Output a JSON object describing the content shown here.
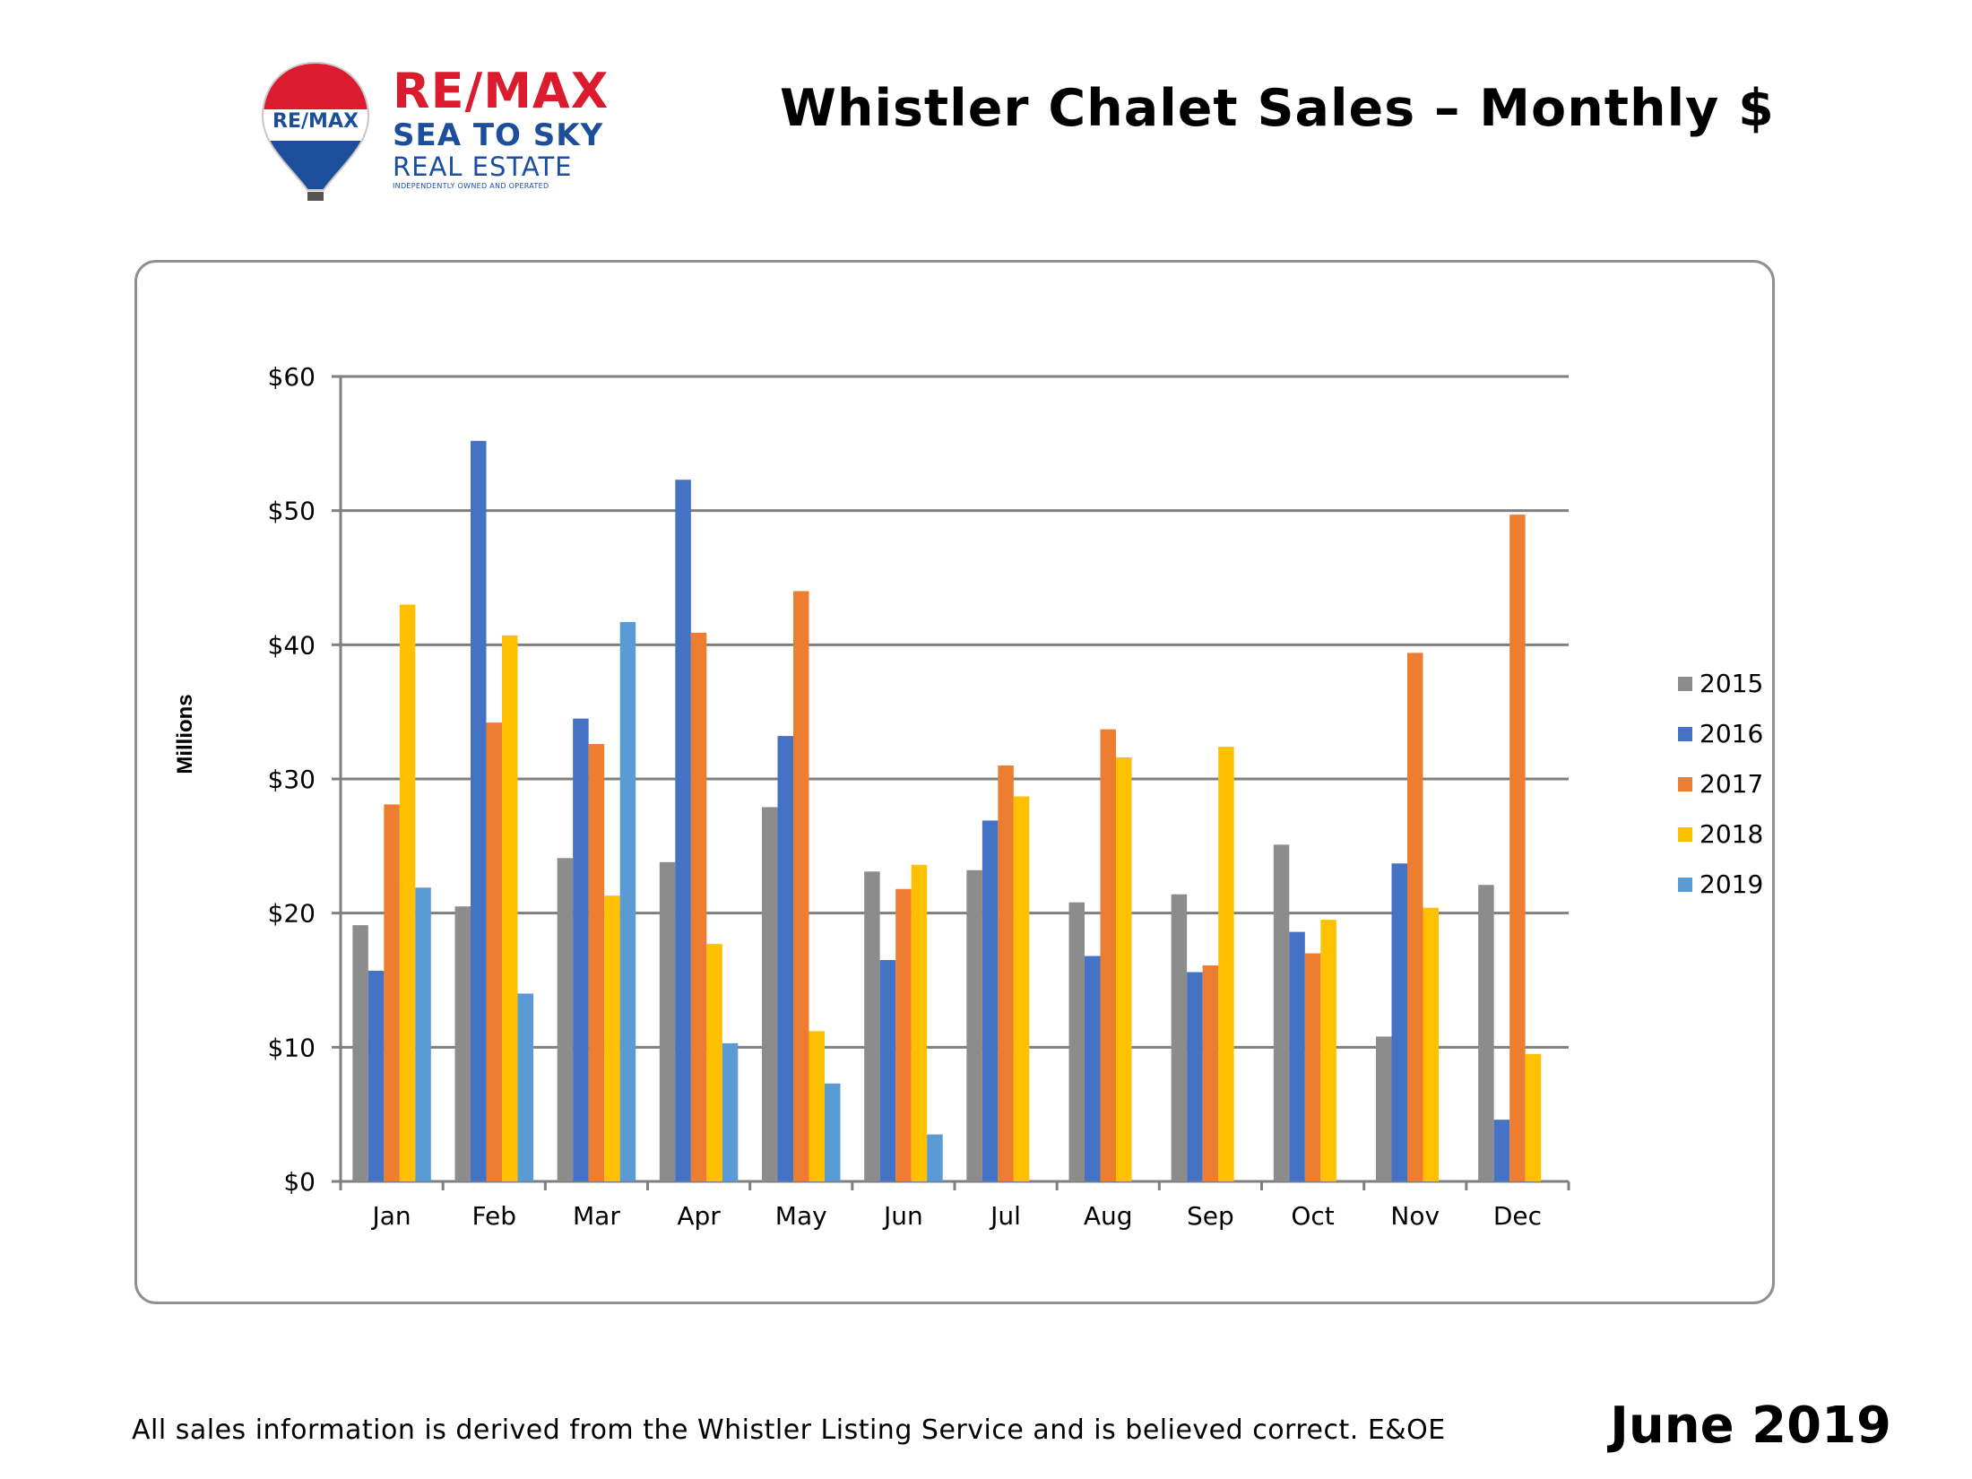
{
  "header": {
    "logo": {
      "balloon_text": "RE/MAX",
      "brand_name": "RE/MAX",
      "office_line1": "SEA TO SKY",
      "office_line2": "REAL ESTATE",
      "tagline": "INDEPENDENTLY OWNED AND OPERATED"
    },
    "title": "Whistler Chalet Sales – Monthly $"
  },
  "colors": {
    "grid": "#7f7f7f",
    "frame": "#8f8f8f",
    "brand_red": "#dc1c2e",
    "brand_blue": "#1c4e9c"
  },
  "chart_data": {
    "type": "bar",
    "ylabel": "Millions",
    "ylim": [
      0,
      60
    ],
    "y_ticks": [
      0,
      10,
      20,
      30,
      40,
      50,
      60
    ],
    "y_tick_labels": [
      "$0",
      "$10",
      "$20",
      "$30",
      "$40",
      "$50",
      "$60"
    ],
    "grid": true,
    "legend_position": "right",
    "categories": [
      "Jan",
      "Feb",
      "Mar",
      "Apr",
      "May",
      "Jun",
      "Jul",
      "Aug",
      "Sep",
      "Oct",
      "Nov",
      "Dec"
    ],
    "series": [
      {
        "name": "2015",
        "color": "#8c8c8c",
        "values": [
          19.1,
          20.5,
          24.1,
          23.8,
          27.9,
          23.1,
          23.2,
          20.8,
          21.4,
          25.1,
          10.8,
          22.1
        ]
      },
      {
        "name": "2016",
        "color": "#4472c4",
        "values": [
          15.7,
          55.2,
          34.5,
          52.3,
          33.2,
          16.5,
          26.9,
          16.8,
          15.6,
          18.6,
          23.7,
          4.6
        ]
      },
      {
        "name": "2017",
        "color": "#ed7d31",
        "values": [
          28.1,
          34.2,
          32.6,
          40.9,
          44.0,
          21.8,
          31.0,
          33.7,
          16.1,
          17.0,
          39.4,
          49.7
        ]
      },
      {
        "name": "2018",
        "color": "#ffc000",
        "values": [
          43.0,
          40.7,
          21.3,
          17.7,
          11.2,
          23.6,
          28.7,
          31.6,
          32.4,
          19.5,
          20.4,
          9.5
        ]
      },
      {
        "name": "2019",
        "color": "#5b9bd5",
        "values": [
          21.9,
          14.0,
          41.7,
          10.3,
          7.3,
          3.5,
          null,
          null,
          null,
          null,
          null,
          null
        ]
      }
    ]
  },
  "footer": {
    "note": "All sales information is derived from the Whistler Listing Service and is believed correct. E&OE",
    "date": "June 2019"
  }
}
